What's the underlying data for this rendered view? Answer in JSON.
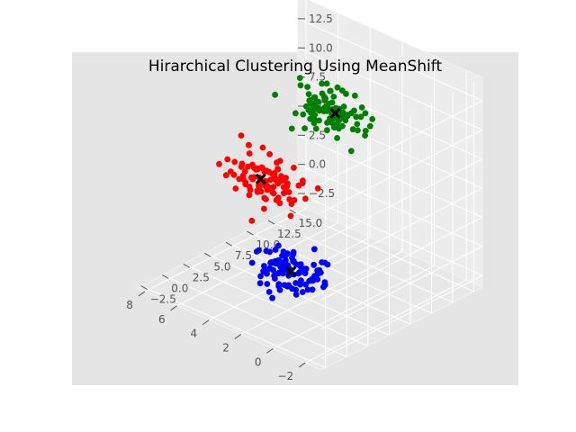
{
  "chart_data": {
    "type": "scatter",
    "projection": "3d",
    "title": "Hirarchical Clustering Using MeanShift",
    "xlabel": "",
    "ylabel": "",
    "zlabel": "",
    "xlim": [
      -3,
      8.5
    ],
    "ylim": [
      -3,
      16
    ],
    "zlim": [
      -3.5,
      14.5
    ],
    "x_ticks": [
      "−2",
      "0",
      "2",
      "4",
      "6",
      "8"
    ],
    "y_ticks": [
      "−2.5",
      "0.0",
      "2.5",
      "5.0",
      "7.5",
      "10.0",
      "12.5",
      "15.0"
    ],
    "z_ticks": [
      "−2.5",
      "0.0",
      "2.5",
      "5.0",
      "7.5",
      "10.0",
      "12.5"
    ],
    "grid": true,
    "legend": "none",
    "colors": {
      "background": "#e5e5e5",
      "panel": "#ececec",
      "grid": "#ffffff",
      "cluster_1": "#0000ff",
      "cluster_2": "#ff0000",
      "cluster_3": "#008000",
      "centers": "#000000"
    },
    "series": [
      {
        "color": "blue",
        "center": [
          1,
          1,
          1
        ],
        "spread": 0.8,
        "count": 100
      },
      {
        "color": "red",
        "center": [
          5,
          5,
          5
        ],
        "spread": 0.8,
        "count": 100
      },
      {
        "color": "green",
        "center": [
          3,
          10,
          10
        ],
        "spread": 0.8,
        "count": 100
      }
    ],
    "cluster_centers": [
      [
        1,
        1,
        1
      ],
      [
        5,
        5,
        5
      ],
      [
        3,
        10,
        10
      ]
    ]
  }
}
